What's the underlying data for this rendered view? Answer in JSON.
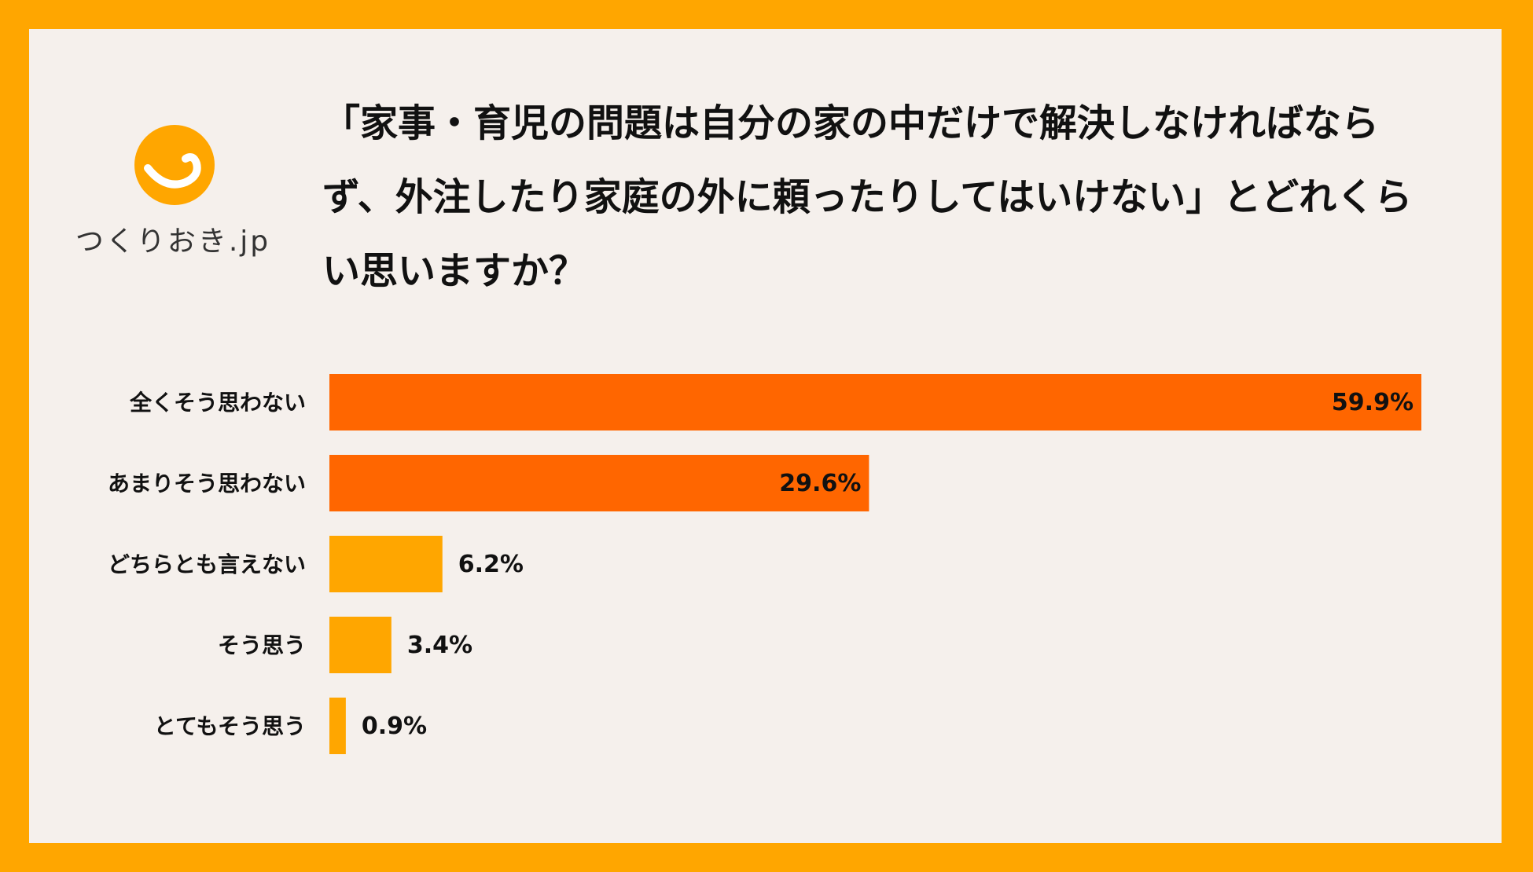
{
  "brand": {
    "logo_text": "つくりおき.jp",
    "logo_color": "#FFA600",
    "icon": "smile-icon"
  },
  "question": "「家事・育児の問題は自分の家の中だけで解決しなければならず、外注したり家庭の外に頼ったりしてはいけない」とどれくらい思いますか？",
  "colors": {
    "frame": "#FFA600",
    "panel": "#F5F0EC",
    "bar_major": "#FF6600",
    "bar_minor": "#FFA600"
  },
  "chart_data": {
    "type": "bar",
    "orientation": "horizontal",
    "title": "「家事・育児の問題は自分の家の中だけで解決しなければならず、外注したり家庭の外に頼ったりしてはいけない」とどれくらい思いますか？",
    "categories": [
      "全くそう思わない",
      "あまりそう思わない",
      "どちらとも言えない",
      "そう思う",
      "とてもそう思う"
    ],
    "values": [
      59.9,
      29.6,
      6.2,
      3.4,
      0.9
    ],
    "value_labels": [
      "59.9%",
      "29.6%",
      "6.2%",
      "3.4%",
      "0.9%"
    ],
    "unit": "%",
    "xlim": [
      0,
      59.9
    ],
    "grid": false,
    "legend": "none"
  }
}
